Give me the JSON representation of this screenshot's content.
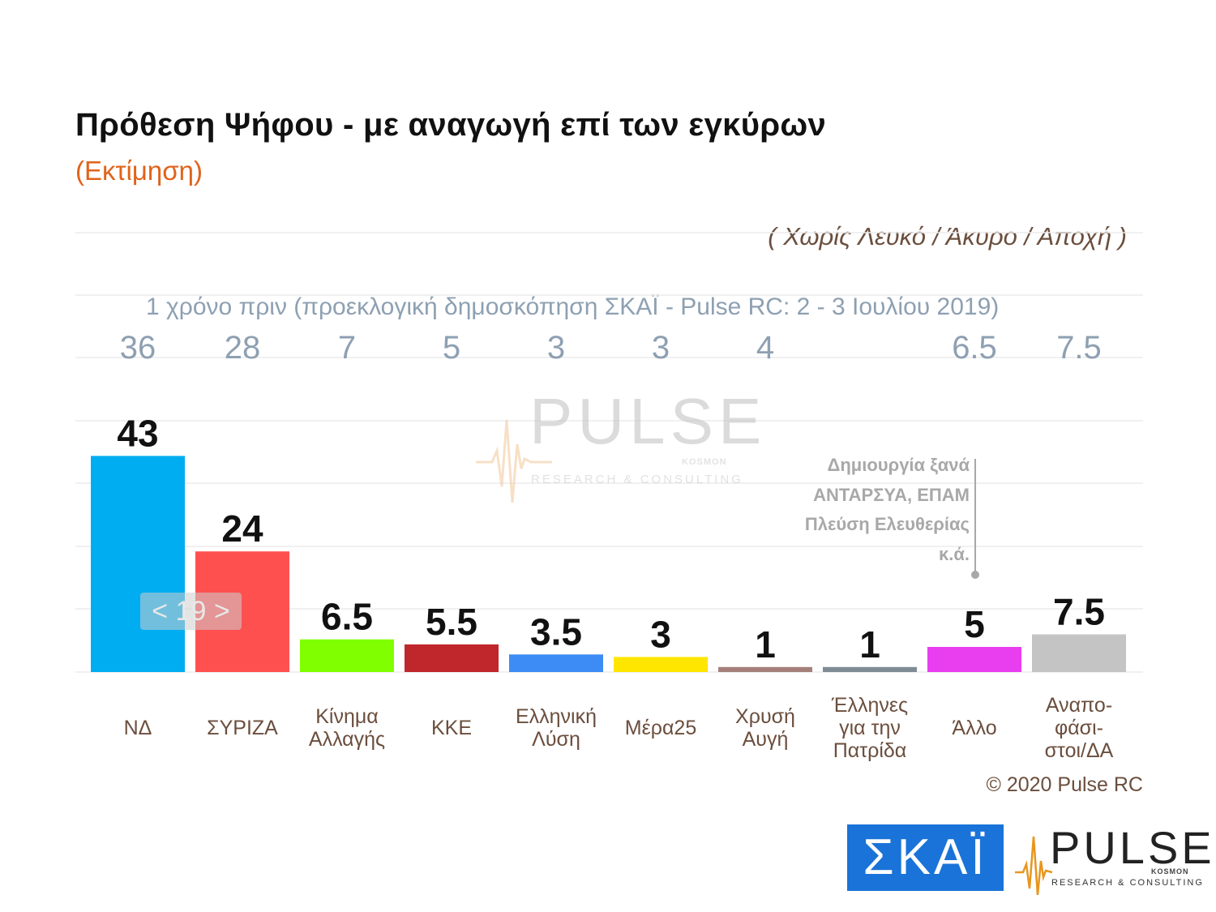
{
  "header": {
    "title": "Πρόθεση Ψήφου - με αναγωγή επί των εγκύρων",
    "subtitle": "(Εκτίμηση)",
    "note": "( Χωρίς Λευκό / Άκυρο / Αποχή )"
  },
  "previous": {
    "caption": "1 χρόνο πριν (προεκλογική δημοσκόπηση ΣΚΑΪ - Pulse RC:  2 - 3 Ιουλίου 2019)"
  },
  "watermark": {
    "word": "PULSE",
    "kosmon": "KOSMON",
    "sub": "RESEARCH & CONSULTING"
  },
  "annotation": {
    "lines": [
      "Δημιουργία ξανά",
      "ΑΝΤΑΡΣΥΑ, ΕΠΑΜ",
      "Πλεύση Ελευθερίας",
      "κ.ά."
    ]
  },
  "nav": {
    "label": "< 19 >"
  },
  "footer": {
    "copyright": "© 2020 Pulse RC"
  },
  "logos": {
    "skai": "ΣΚΑΪ",
    "pulse": {
      "word": "PULSE",
      "kosmon": "KOSMON",
      "sub": "RESEARCH & CONSULTING"
    }
  },
  "chart_data": {
    "type": "bar",
    "categories": [
      [
        "ΝΔ"
      ],
      [
        "ΣΥΡΙΖΑ"
      ],
      [
        "Κίνημα",
        "Αλλαγής"
      ],
      [
        "ΚΚΕ"
      ],
      [
        "Ελληνική",
        "Λύση"
      ],
      [
        "Μέρα25"
      ],
      [
        "Χρυσή",
        "Αυγή"
      ],
      [
        "Έλληνες",
        "για την",
        "Πατρίδα"
      ],
      [
        "Άλλο"
      ],
      [
        "Αναπο-",
        "φάσι-",
        "στοι/ΔΑ"
      ]
    ],
    "values": [
      43,
      24,
      6.5,
      5.5,
      3.5,
      3,
      1,
      1,
      5,
      7.5
    ],
    "value_labels": [
      "43",
      "24",
      "6.5",
      "5.5",
      "3.5",
      "3",
      "1",
      "1",
      "5",
      "7.5"
    ],
    "previous_values": [
      "36",
      "28",
      "7",
      "5",
      "3",
      "3",
      "4",
      "",
      "6.5",
      "7.5"
    ],
    "colors": [
      "#00adf0",
      "#ff5050",
      "#7fff00",
      "#c0272d",
      "#3d8cf5",
      "#ffe600",
      "#a5807a",
      "#7f8c96",
      "#e83ef0",
      "#c4c4c4"
    ],
    "ylim": [
      0,
      50
    ],
    "grid": true,
    "xlabel": "",
    "ylabel": ""
  }
}
